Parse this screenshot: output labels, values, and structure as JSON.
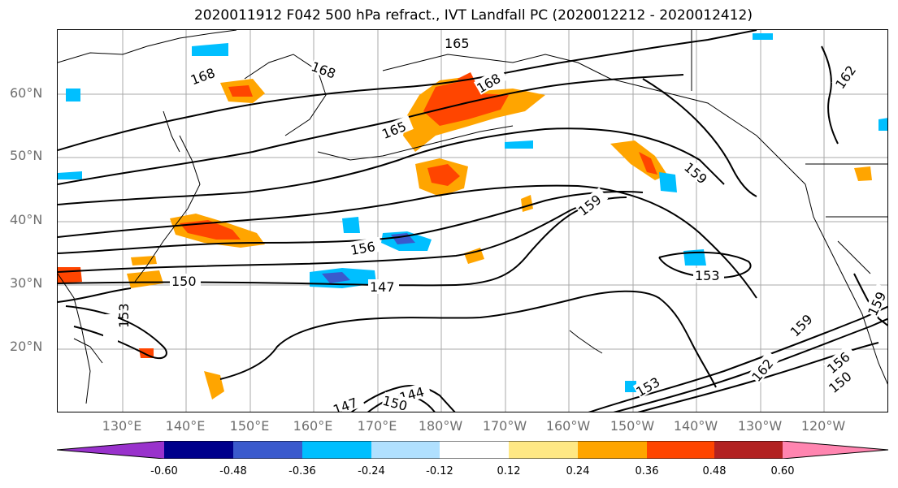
{
  "title": "2020011912 F042 500 hPa refract., IVT Landfall PC (2020012212 - 2020012412)",
  "lat_labels": [
    "60°N",
    "50°N",
    "40°N",
    "30°N",
    "20°N"
  ],
  "lon_labels": [
    "130°E",
    "140°E",
    "150°E",
    "160°E",
    "170°E",
    "180°W",
    "170°W",
    "160°W",
    "150°W",
    "140°W",
    "130°W",
    "120°W"
  ],
  "colorbar": {
    "colors": [
      "#9932cc",
      "#00008b",
      "#3a5acd",
      "#00bfff",
      "#b0e0ff",
      "#ffffff",
      "#ffe884",
      "#ffa500",
      "#ff4500",
      "#b22222",
      "#ff85b0"
    ],
    "tick_labels": [
      "-0.60",
      "-0.48",
      "-0.36",
      "-0.24",
      "-0.12",
      "0.12",
      "0.24",
      "0.36",
      "0.48",
      "0.60"
    ]
  },
  "contour_labels": [
    "165",
    "168",
    "168",
    "168",
    "165",
    "162",
    "159",
    "159",
    "156",
    "153",
    "150",
    "147",
    "153",
    "159",
    "162",
    "153",
    "156",
    "150",
    "159",
    "147",
    "144",
    "150"
  ]
}
